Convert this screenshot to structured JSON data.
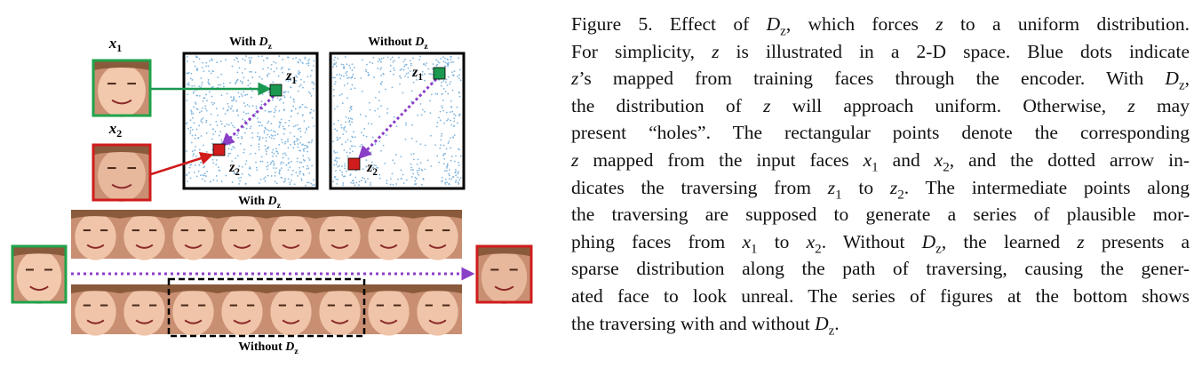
{
  "figure": {
    "inputs": [
      {
        "v": "x",
        "s": "1"
      },
      {
        "v": "x",
        "s": "2"
      }
    ],
    "plots": [
      {
        "title": "With ",
        "v": "D",
        "s": "z",
        "z1": {
          "v": "z",
          "s": "1"
        },
        "z2": {
          "v": "z",
          "s": "2"
        }
      },
      {
        "title": "Without ",
        "v": "D",
        "s": "z",
        "z1": {
          "v": "z",
          "s": "1"
        },
        "z2": {
          "v": "z",
          "s": "2"
        }
      }
    ],
    "rows": [
      {
        "title": "With ",
        "v": "D",
        "s": "z"
      },
      {
        "title": "Without ",
        "v": "D",
        "s": "z"
      }
    ]
  },
  "caption": {
    "lines": [
      [
        "Figure 5. Effect of ",
        {
          "v": "D",
          "s": "z"
        },
        ", which forces ",
        {
          "v": "z"
        },
        " to a uniform distribution."
      ],
      [
        "For simplicity, ",
        {
          "v": "z"
        },
        " is illustrated in a 2-D space. Blue dots indicate"
      ],
      [
        {
          "v": "z"
        },
        "’s mapped from training faces through the encoder. With ",
        {
          "v": "D",
          "s": "z"
        },
        ","
      ],
      [
        "the distribution of ",
        {
          "v": "z"
        },
        " will approach uniform. Otherwise, ",
        {
          "v": "z"
        },
        " may"
      ],
      [
        "present “holes”. The rectangular points denote the corresponding"
      ],
      [
        {
          "v": "z"
        },
        " mapped from the input faces ",
        {
          "v": "x",
          "s": "1"
        },
        " and ",
        {
          "v": "x",
          "s": "2"
        },
        ", and the dotted arrow in-"
      ],
      [
        "dicates the traversing from ",
        {
          "v": "z",
          "s": "1"
        },
        " to ",
        {
          "v": "z",
          "s": "2"
        },
        ". The intermediate points along"
      ],
      [
        "the traversing are supposed to generate a series of plausible mor-"
      ],
      [
        "phing faces from ",
        {
          "v": "x",
          "s": "1"
        },
        " to ",
        {
          "v": "x",
          "s": "2"
        },
        ". Without ",
        {
          "v": "D",
          "s": "z"
        },
        ", the learned ",
        {
          "v": "z"
        },
        " presents a"
      ],
      [
        "sparse distribution along the path of traversing, causing the gener-"
      ],
      [
        "ated face to look unreal. The series of figures at the bottom shows"
      ],
      [
        "the traversing with and without ",
        {
          "v": "D",
          "s": "z"
        },
        "."
      ]
    ]
  }
}
